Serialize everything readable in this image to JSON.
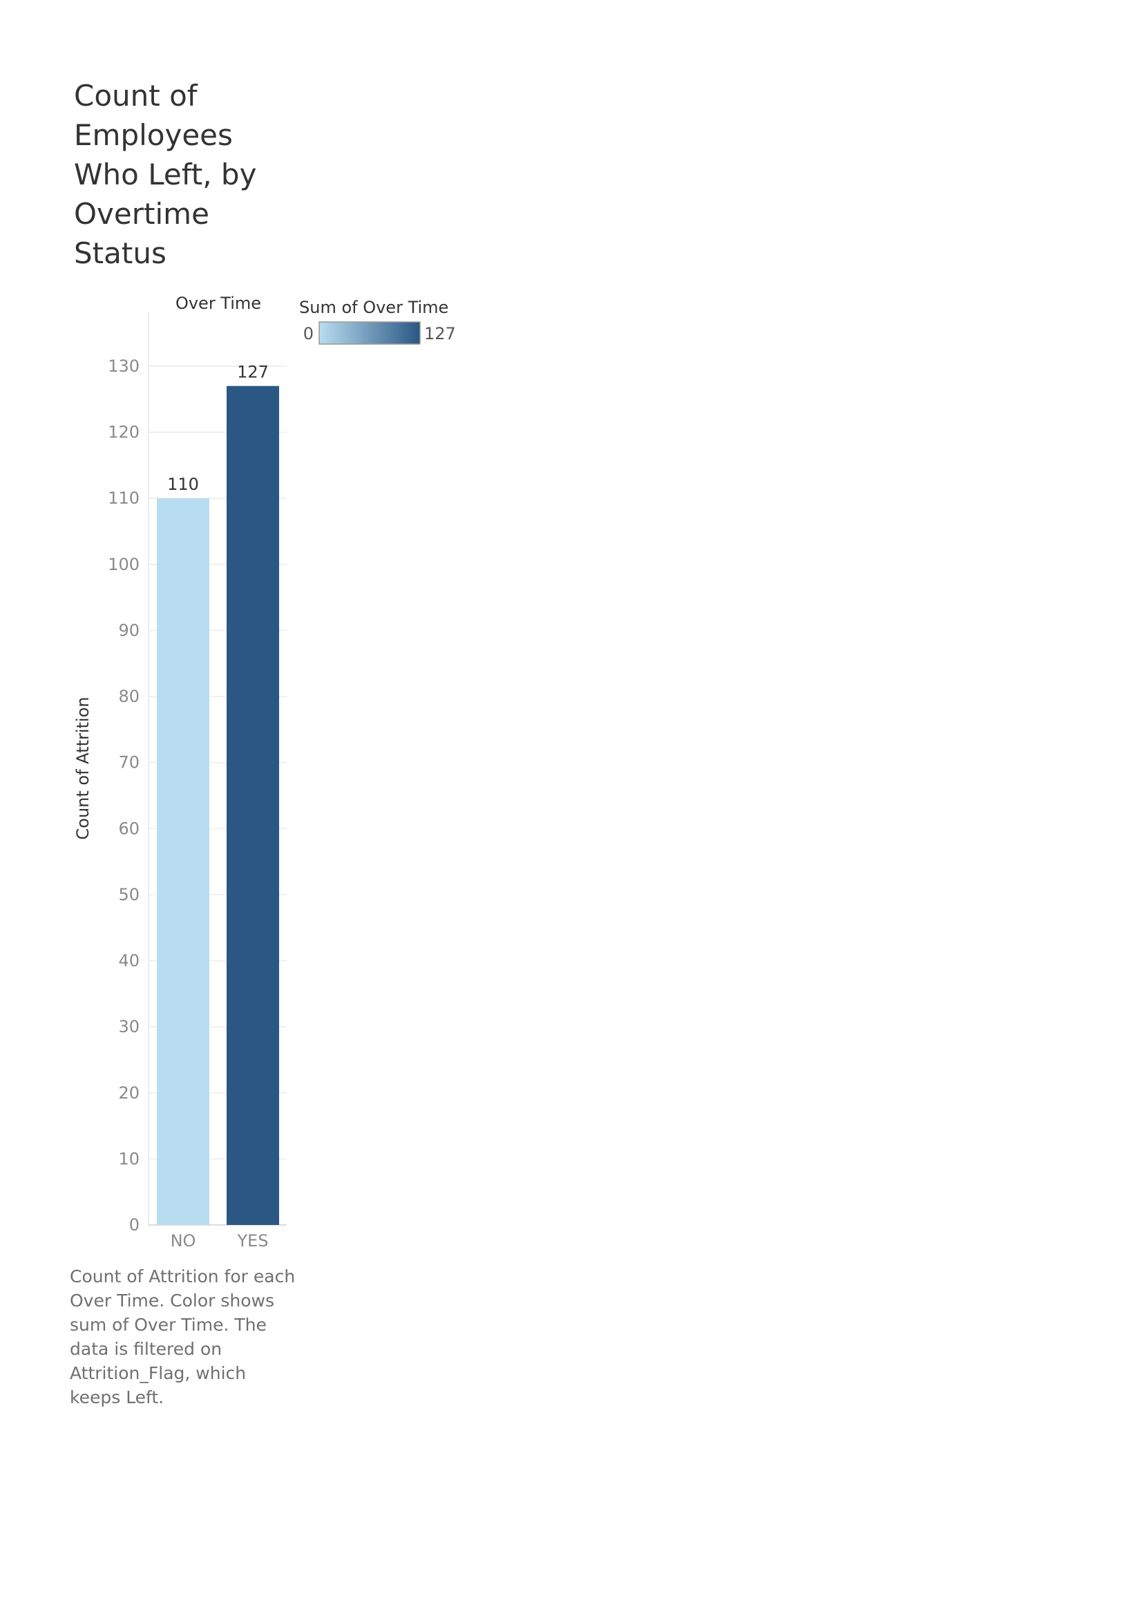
{
  "chart_data": {
    "type": "bar",
    "title": "Count of Employees Who Left, by Overtime Status",
    "column_header": "Over Time",
    "categories": [
      "NO",
      "YES"
    ],
    "values": [
      110,
      127
    ],
    "data_labels": [
      "110",
      "127"
    ],
    "ylabel": "Count of Attrition",
    "xlabel": "",
    "ylim": [
      0,
      130
    ],
    "y_ticks": [
      0,
      10,
      20,
      30,
      40,
      50,
      60,
      70,
      80,
      90,
      100,
      110,
      120,
      130
    ],
    "grid": true,
    "colors": {
      "min": "#b9ddf0",
      "max": "#2a5783"
    },
    "legend": {
      "title": "Sum of Over Time",
      "min_label": "0",
      "max_label": "127",
      "placement": "top-right",
      "gradient": [
        "#b9ddf0",
        "#2a5783"
      ]
    },
    "caption": "Count of Attrition for each Over Time.  Color shows sum of Over Time. The data is filtered on Attrition_Flag, which keeps Left."
  }
}
